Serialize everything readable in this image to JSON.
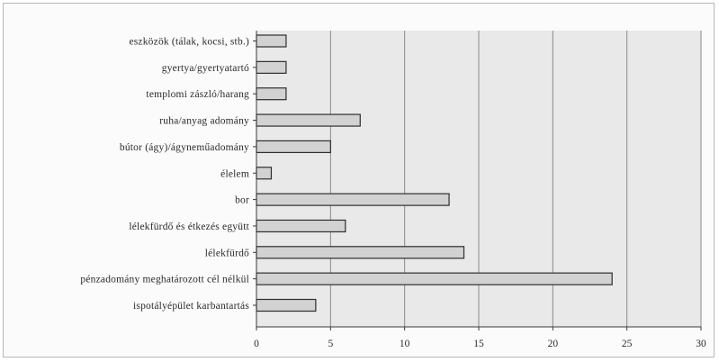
{
  "chart_data": {
    "type": "bar",
    "orientation": "horizontal",
    "categories": [
      "eszközök (tálak, kocsi, stb.)",
      "gyertya/gyertyatartó",
      "templomi zászló/harang",
      "ruha/anyag adomány",
      "bútor (ágy)/ágyneműadomány",
      "élelem",
      "bor",
      "lélekfürdő és étkezés együtt",
      "lélekfürdő",
      "pénzadomány meghatározott cél nélkül",
      "ispotályépület karbantartás"
    ],
    "values": [
      2,
      2,
      2,
      7,
      5,
      1,
      13,
      6,
      14,
      24,
      4
    ],
    "xlim": [
      0,
      30
    ],
    "xticks": [
      "0",
      "5",
      "10",
      "15",
      "20",
      "25",
      "30"
    ],
    "title": "",
    "xlabel": "",
    "ylabel": "",
    "grid": "vertical",
    "colors": {
      "bar_fill": "#d2d2d2",
      "bar_stroke": "#2e2e2e",
      "plot_bg": "#e9e9e9",
      "grid": "#8a8a8a",
      "axis": "#3a3a3a"
    }
  }
}
